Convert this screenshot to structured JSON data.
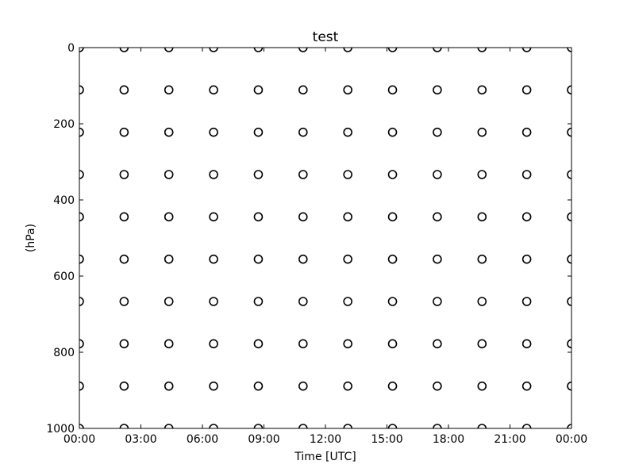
{
  "chart_data": {
    "type": "scatter",
    "title": "test",
    "xlabel": "Time [UTC]",
    "ylabel": "(hPa)",
    "x_tick_labels": [
      "00:00",
      "03:00",
      "06:00",
      "09:00",
      "12:00",
      "15:00",
      "18:00",
      "21:00",
      "00:00"
    ],
    "x_tick_hours": [
      0,
      3,
      6,
      9,
      12,
      15,
      18,
      21,
      24
    ],
    "xlim_hours": [
      0,
      24
    ],
    "y_ticks": [
      0,
      200,
      400,
      600,
      800,
      1000
    ],
    "y_tick_labels": [
      "0",
      "200",
      "400",
      "600",
      "800",
      "1000"
    ],
    "ylim": [
      0,
      1000
    ],
    "y_inverted": true,
    "grid": false,
    "marker": "circle-open",
    "marker_color": "#000000",
    "x_points_hours": [
      0,
      2.1818,
      4.3636,
      6.5455,
      8.7273,
      10.9091,
      13.0909,
      15.2727,
      17.4545,
      19.6364,
      21.8182,
      24
    ],
    "y_points_hPa": [
      0,
      111.11,
      222.22,
      333.33,
      444.44,
      555.56,
      666.67,
      777.78,
      888.89,
      1000
    ]
  }
}
